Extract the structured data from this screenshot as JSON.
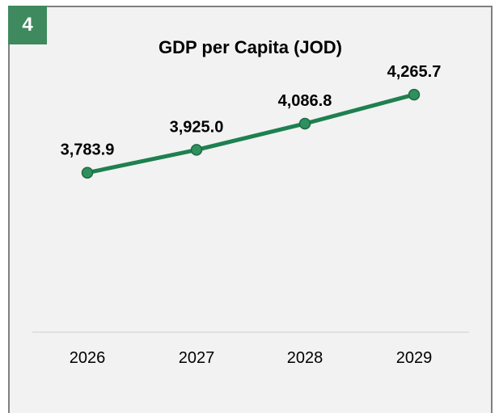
{
  "badge": {
    "number": "4"
  },
  "chart_data": {
    "type": "line",
    "title": "GDP per Capita (JOD)",
    "categories": [
      "2026",
      "2027",
      "2028",
      "2029"
    ],
    "values": [
      3783.9,
      3925.0,
      4086.8,
      4265.7
    ],
    "value_labels": [
      "3,783.9",
      "3,925.0",
      "4,086.8",
      "4,265.7"
    ],
    "ylim": [
      2800,
      4700
    ],
    "grid": false,
    "colors": {
      "line": "#1e8050",
      "marker": "#2f8f5e",
      "marker_edge": "#1b6b43",
      "badge": "#3e8a5e",
      "baseline": "#d9d9d9"
    }
  }
}
